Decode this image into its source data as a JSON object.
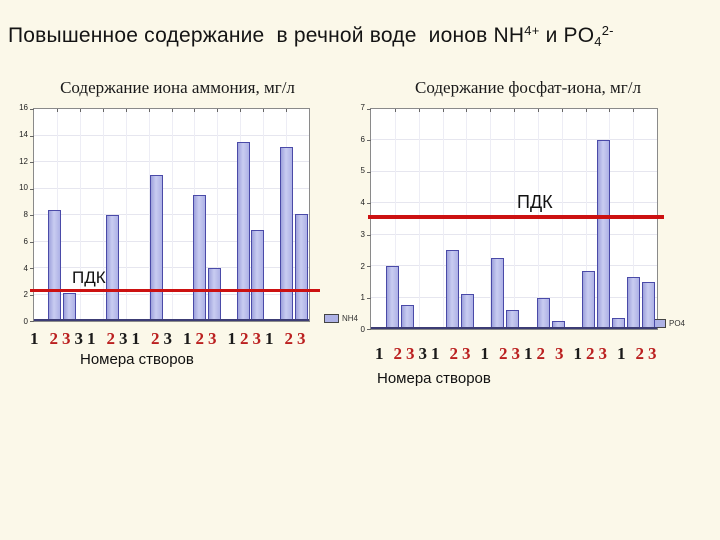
{
  "slide_title": {
    "part1": "Повышенное содержание  в речной воде  ионов NH",
    "nh_sup": "4+",
    "part2": " и PO",
    "po_sub": "4",
    "po_sup": "2-"
  },
  "colors": {
    "background": "#fbf8e9",
    "plot_background": "#ffffff",
    "bar_fill": "#aeb2e6",
    "bar_border": "#4a4aa8",
    "pdk_line": "#cc1111",
    "x_label_red": "#bb2020",
    "x_label_black": "#1a1a1a"
  },
  "chart_data": [
    {
      "type": "bar",
      "title": "Содержание иона аммония, мг/л",
      "legend": "NH4",
      "xlabel": "Номера створов",
      "ylim": [
        0,
        16
      ],
      "yticks": [
        0,
        2,
        4,
        6,
        8,
        10,
        12,
        14,
        16
      ],
      "grid": true,
      "legend_position": "bottom-right",
      "n_slots": 19,
      "bars": {
        "slots": [
          1,
          2,
          5,
          8,
          11,
          12,
          14,
          15,
          17,
          18
        ],
        "values": [
          8.4,
          2.1,
          8.0,
          11.0,
          9.5,
          4.0,
          13.5,
          6.9,
          13.1,
          8.1
        ]
      },
      "pdk": {
        "label": "ПДК",
        "value": 2.2
      },
      "x_tick_groups": [
        [
          [
            "1",
            0
          ]
        ],
        [
          [
            "2",
            1
          ],
          [
            "3",
            1
          ],
          [
            "3",
            0
          ],
          [
            "1",
            0
          ]
        ],
        [
          [
            "2",
            1
          ],
          [
            "3",
            0
          ],
          [
            "1",
            0
          ]
        ],
        [
          [
            "2",
            1
          ],
          [
            "3",
            0
          ]
        ],
        [
          [
            "1",
            0
          ],
          [
            "2",
            1
          ],
          [
            "3",
            1
          ]
        ],
        [
          [
            "1",
            0
          ],
          [
            "2",
            1
          ],
          [
            "3",
            1
          ],
          [
            "1",
            0
          ]
        ],
        [
          [
            "2",
            1
          ],
          [
            "3",
            1
          ]
        ]
      ]
    },
    {
      "type": "bar",
      "title": "Содержание фосфат-иона, мг/л",
      "legend": "PO4",
      "xlabel": "Номера створов",
      "ylim": [
        0,
        7
      ],
      "yticks": [
        0,
        1,
        2,
        3,
        4,
        5,
        6,
        7
      ],
      "grid": true,
      "legend_position": "bottom-right",
      "n_slots": 19,
      "bars": {
        "slots": [
          0,
          1,
          2,
          5,
          6,
          8,
          9,
          11,
          12,
          14,
          15,
          16,
          17,
          18
        ],
        "values": [
          0.05,
          2.0,
          0.75,
          2.5,
          1.1,
          2.25,
          0.6,
          1.0,
          0.25,
          1.85,
          6.0,
          0.35,
          1.65,
          1.5
        ]
      },
      "pdk": {
        "label": "ПДК",
        "value": 3.5
      },
      "x_tick_groups": [
        [
          [
            "1",
            0
          ]
        ],
        [
          [
            "2",
            1
          ],
          [
            "3",
            1
          ],
          [
            "3",
            0
          ],
          [
            "1",
            0
          ]
        ],
        [
          [
            "2",
            1
          ],
          [
            "3",
            1
          ]
        ],
        [
          [
            "1",
            0
          ]
        ],
        [
          [
            "2",
            1
          ],
          [
            "3",
            1
          ],
          [
            "1",
            0
          ],
          [
            "2",
            1
          ]
        ],
        [
          [
            "3",
            1
          ]
        ],
        [
          [
            "1",
            0
          ],
          [
            "2",
            1
          ],
          [
            "3",
            1
          ]
        ],
        [
          [
            "1",
            0
          ]
        ],
        [
          [
            "2",
            1
          ],
          [
            "3",
            1
          ]
        ]
      ]
    }
  ]
}
